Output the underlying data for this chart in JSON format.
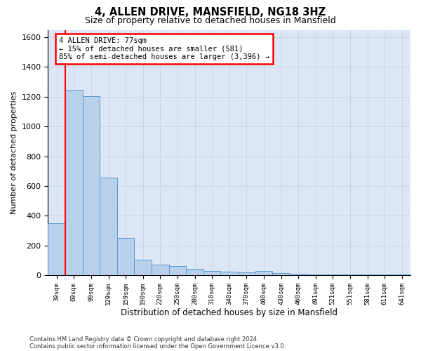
{
  "title1": "4, ALLEN DRIVE, MANSFIELD, NG18 3HZ",
  "title2": "Size of property relative to detached houses in Mansfield",
  "xlabel": "Distribution of detached houses by size in Mansfield",
  "ylabel": "Number of detached properties",
  "annotation_text": "4 ALLEN DRIVE: 77sqm\n← 15% of detached houses are smaller (581)\n85% of semi-detached houses are larger (3,396) →",
  "footnote1": "Contains HM Land Registry data © Crown copyright and database right 2024.",
  "footnote2": "Contains public sector information licensed under the Open Government Licence v3.0.",
  "bin_labels": [
    "39sqm",
    "69sqm",
    "99sqm",
    "129sqm",
    "159sqm",
    "190sqm",
    "220sqm",
    "250sqm",
    "280sqm",
    "310sqm",
    "340sqm",
    "370sqm",
    "400sqm",
    "430sqm",
    "460sqm",
    "491sqm",
    "521sqm",
    "551sqm",
    "581sqm",
    "611sqm",
    "641sqm"
  ],
  "bar_values": [
    350,
    1245,
    1205,
    655,
    250,
    105,
    72,
    62,
    42,
    30,
    22,
    18,
    30,
    12,
    8,
    5,
    5,
    5,
    5,
    5,
    5
  ],
  "bar_color": "#b8d0ea",
  "bar_edge_color": "#5b9bd5",
  "ylim": [
    0,
    1650
  ],
  "yticks": [
    0,
    200,
    400,
    600,
    800,
    1000,
    1200,
    1400,
    1600
  ],
  "grid_color": "#c8d4e8",
  "background_color": "#dce6f5",
  "red_line_x": 0.5,
  "figsize": [
    6.0,
    5.0
  ],
  "dpi": 100
}
